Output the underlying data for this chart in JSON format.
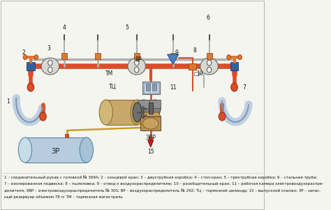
{
  "bg_color": "#f5f5f0",
  "caption_lines": [
    "1 – соединительный рукав с головкой № 369А; 2 – концевой кран; 3 – двухтрубная коробка; 4 – стоп-кран; 5 – трехтрубная коробка; 6 – стальная труба;",
    "7 – изолированная подвеска; 8 – пылеловка; 9 – отвод к воздухораспределителю; 10 – разобщительный кран; 11 – рабочая камера электровоздухораспре-",
    "делителя; ЭВР – электровоздухораспределитель № 305; ВР – воздухораспределитель № 292; ТЦ – тормозной цилиндр; 15 – выпускной клапан; ЗР – запас-",
    "ный резервуар объемом 78 л; ТМ – тормозная магистраль"
  ],
  "red": "#d94f2a",
  "orange": "#e07830",
  "blue_sq": "#3060a0",
  "tan": "#c8a86a",
  "dgray": "#555555",
  "lgray": "#a0a0a0",
  "lblue": "#b8cce0",
  "wht": "#f0f0f0",
  "gpipe": "#b0b0b0",
  "yellow": "#c8a020"
}
